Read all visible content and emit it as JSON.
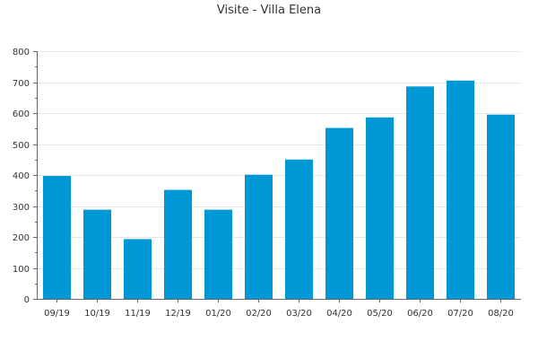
{
  "chart_data": {
    "type": "bar",
    "title": "Visite - Villa Elena",
    "xlabel": "",
    "ylabel": "",
    "categories": [
      "09/19",
      "10/19",
      "11/19",
      "12/19",
      "01/20",
      "02/20",
      "03/20",
      "04/20",
      "05/20",
      "06/20",
      "07/20",
      "08/20"
    ],
    "values": [
      397,
      288,
      193,
      352,
      288,
      401,
      450,
      552,
      586,
      686,
      705,
      595
    ],
    "ylim": [
      0,
      800
    ],
    "yticks": [
      0,
      100,
      200,
      300,
      400,
      500,
      600,
      700,
      800
    ],
    "grid": true,
    "legend": "none",
    "colors": {
      "bar": "#0098d4",
      "grid": "#e6e6e6",
      "axis": "#666666",
      "text": "#333333"
    }
  }
}
